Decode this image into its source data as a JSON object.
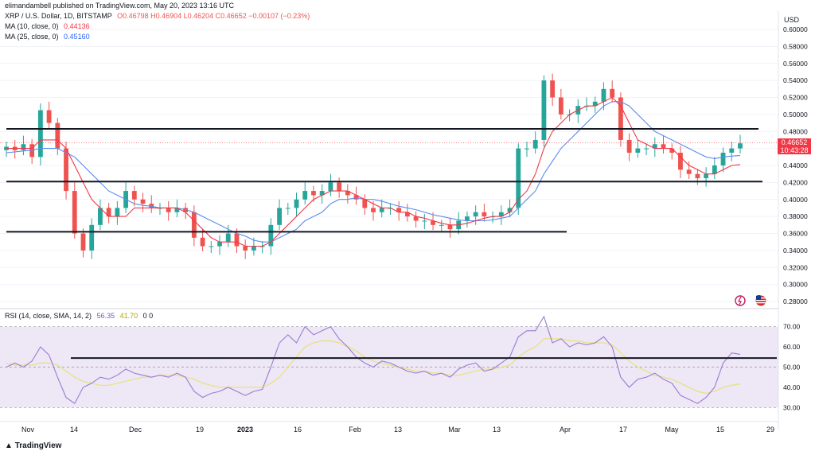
{
  "header": {
    "published_by": "elimandambell published on TradingView.com, May 20, 2023 13:16 UTC",
    "symbol": "XRP / U.S. Dollar, 1D, BITSTAMP",
    "ohlc": "O0.46798 H0.46904 L0.46204 C0.46652 −0.00107 (−0.23%)",
    "ma10_label": "MA (10, close, 0)",
    "ma10_value": "0.44136",
    "ma25_label": "MA (25, close, 0)",
    "ma25_value": "0.45160",
    "rsi_label": "RSI (14, close, SMA, 14, 2)",
    "rsi_value": "56.35",
    "rsi_ma_value": "41.70",
    "rsi_tail": "0 0"
  },
  "axis": {
    "currency": "USD",
    "price_ticks": [
      "0.60000",
      "0.58000",
      "0.56000",
      "0.54000",
      "0.52000",
      "0.50000",
      "0.48000",
      "0.46000",
      "0.44000",
      "0.42000",
      "0.40000",
      "0.38000",
      "0.36000",
      "0.34000",
      "0.32000",
      "0.30000",
      "0.28000"
    ],
    "last_price": "0.46652",
    "countdown": "10:43:28",
    "rsi_ticks": [
      "70.00",
      "60.00",
      "50.00",
      "40.00",
      "30.00"
    ],
    "x_labels": [
      "Nov",
      "14",
      "Dec",
      "19",
      "2023",
      "16",
      "Feb",
      "13",
      "Mar",
      "13",
      "Apr",
      "17",
      "May",
      "15",
      "29"
    ]
  },
  "footer": {
    "brand": "TradingView"
  },
  "colors": {
    "up": "#26a69a",
    "down": "#ef5350",
    "ma10": "#f23645",
    "ma25": "#5b8def",
    "rsi": "#9c7bd1",
    "rsi_ma": "#e8e27a",
    "rsi_band": "#ede7f6",
    "level": "#131722"
  },
  "chart_data": {
    "type": "candlestick",
    "symbol": "XRP / U.S. Dollar",
    "interval": "1D",
    "x": [
      "Nov",
      "14",
      "Dec",
      "19",
      "2023",
      "16",
      "Feb",
      "13",
      "Mar",
      "13",
      "Apr",
      "17",
      "May",
      "15",
      "29"
    ],
    "close_series": [
      0.462,
      0.458,
      0.465,
      0.45,
      0.505,
      0.49,
      0.46,
      0.41,
      0.36,
      0.34,
      0.37,
      0.39,
      0.38,
      0.39,
      0.41,
      0.4,
      0.395,
      0.39,
      0.39,
      0.385,
      0.39,
      0.385,
      0.355,
      0.345,
      0.345,
      0.35,
      0.36,
      0.345,
      0.34,
      0.345,
      0.345,
      0.37,
      0.39,
      0.39,
      0.4,
      0.41,
      0.405,
      0.41,
      0.42,
      0.41,
      0.405,
      0.4,
      0.39,
      0.385,
      0.39,
      0.39,
      0.385,
      0.38,
      0.375,
      0.375,
      0.37,
      0.37,
      0.365,
      0.375,
      0.38,
      0.385,
      0.38,
      0.38,
      0.385,
      0.39,
      0.46,
      0.46,
      0.47,
      0.54,
      0.52,
      0.5,
      0.5,
      0.51,
      0.51,
      0.515,
      0.53,
      0.52,
      0.47,
      0.455,
      0.46,
      0.46,
      0.465,
      0.46,
      0.455,
      0.435,
      0.43,
      0.425,
      0.43,
      0.44,
      0.455,
      0.46,
      0.466
    ],
    "ma10_series": [
      0.46,
      0.46,
      0.46,
      0.46,
      0.47,
      0.47,
      0.47,
      0.46,
      0.44,
      0.42,
      0.4,
      0.39,
      0.38,
      0.38,
      0.38,
      0.39,
      0.39,
      0.39,
      0.39,
      0.39,
      0.39,
      0.385,
      0.375,
      0.365,
      0.355,
      0.35,
      0.35,
      0.35,
      0.345,
      0.345,
      0.345,
      0.35,
      0.36,
      0.37,
      0.38,
      0.39,
      0.4,
      0.405,
      0.41,
      0.41,
      0.41,
      0.405,
      0.4,
      0.395,
      0.39,
      0.39,
      0.385,
      0.385,
      0.38,
      0.378,
      0.375,
      0.372,
      0.37,
      0.37,
      0.372,
      0.375,
      0.378,
      0.38,
      0.38,
      0.385,
      0.4,
      0.41,
      0.43,
      0.46,
      0.48,
      0.49,
      0.5,
      0.505,
      0.51,
      0.51,
      0.515,
      0.52,
      0.51,
      0.49,
      0.47,
      0.465,
      0.46,
      0.46,
      0.46,
      0.45,
      0.44,
      0.435,
      0.43,
      0.43,
      0.435,
      0.44,
      0.441
    ],
    "ma25_series": [
      0.455,
      0.456,
      0.457,
      0.458,
      0.46,
      0.46,
      0.46,
      0.455,
      0.45,
      0.44,
      0.43,
      0.42,
      0.41,
      0.405,
      0.4,
      0.395,
      0.393,
      0.392,
      0.39,
      0.39,
      0.39,
      0.388,
      0.385,
      0.38,
      0.375,
      0.37,
      0.365,
      0.36,
      0.357,
      0.352,
      0.35,
      0.35,
      0.355,
      0.36,
      0.365,
      0.375,
      0.38,
      0.385,
      0.395,
      0.4,
      0.4,
      0.402,
      0.4,
      0.4,
      0.398,
      0.395,
      0.392,
      0.39,
      0.388,
      0.385,
      0.382,
      0.38,
      0.378,
      0.376,
      0.375,
      0.375,
      0.375,
      0.376,
      0.378,
      0.38,
      0.39,
      0.4,
      0.41,
      0.43,
      0.445,
      0.46,
      0.47,
      0.48,
      0.49,
      0.5,
      0.51,
      0.515,
      0.515,
      0.51,
      0.5,
      0.49,
      0.48,
      0.475,
      0.47,
      0.465,
      0.46,
      0.455,
      0.45,
      0.448,
      0.45,
      0.451,
      0.4516
    ],
    "horizontal_levels": [
      0.483,
      0.421,
      0.362
    ],
    "ylim": [
      0.27,
      0.61
    ],
    "rsi": {
      "values": [
        50,
        52,
        50,
        53,
        60,
        56,
        45,
        35,
        32,
        40,
        42,
        45,
        44,
        46,
        49,
        47,
        46,
        45,
        46,
        45,
        47,
        45,
        38,
        35,
        37,
        38,
        40,
        38,
        36,
        38,
        39,
        50,
        62,
        66,
        62,
        70,
        66,
        68,
        70,
        64,
        60,
        55,
        52,
        50,
        53,
        52,
        50,
        48,
        47,
        48,
        46,
        47,
        45,
        49,
        51,
        52,
        48,
        49,
        52,
        55,
        65,
        68,
        68,
        75,
        62,
        64,
        60,
        62,
        61,
        62,
        65,
        60,
        45,
        40,
        44,
        45,
        47,
        44,
        42,
        36,
        34,
        32,
        35,
        40,
        52,
        57,
        56.35
      ],
      "ma_values": [
        52,
        51,
        51,
        51,
        52,
        52,
        51,
        48,
        45,
        43,
        42,
        41,
        41,
        42,
        43,
        44,
        45,
        45,
        46,
        46,
        46,
        45,
        44,
        42,
        41,
        40,
        40,
        40,
        40,
        40,
        40,
        42,
        45,
        50,
        55,
        60,
        62,
        63,
        63,
        62,
        60,
        58,
        55,
        53,
        52,
        51,
        50,
        49,
        48,
        48,
        47,
        47,
        46,
        46,
        47,
        48,
        49,
        49,
        50,
        51,
        55,
        58,
        60,
        64,
        64,
        64,
        63,
        63,
        62,
        62,
        62,
        61,
        57,
        53,
        50,
        48,
        46,
        45,
        44,
        42,
        40,
        38,
        37,
        38,
        40,
        41,
        41.7
      ],
      "ylim": [
        25,
        75
      ],
      "band": [
        30,
        70
      ],
      "midline": 50,
      "horizontal_level": 54.5
    }
  }
}
